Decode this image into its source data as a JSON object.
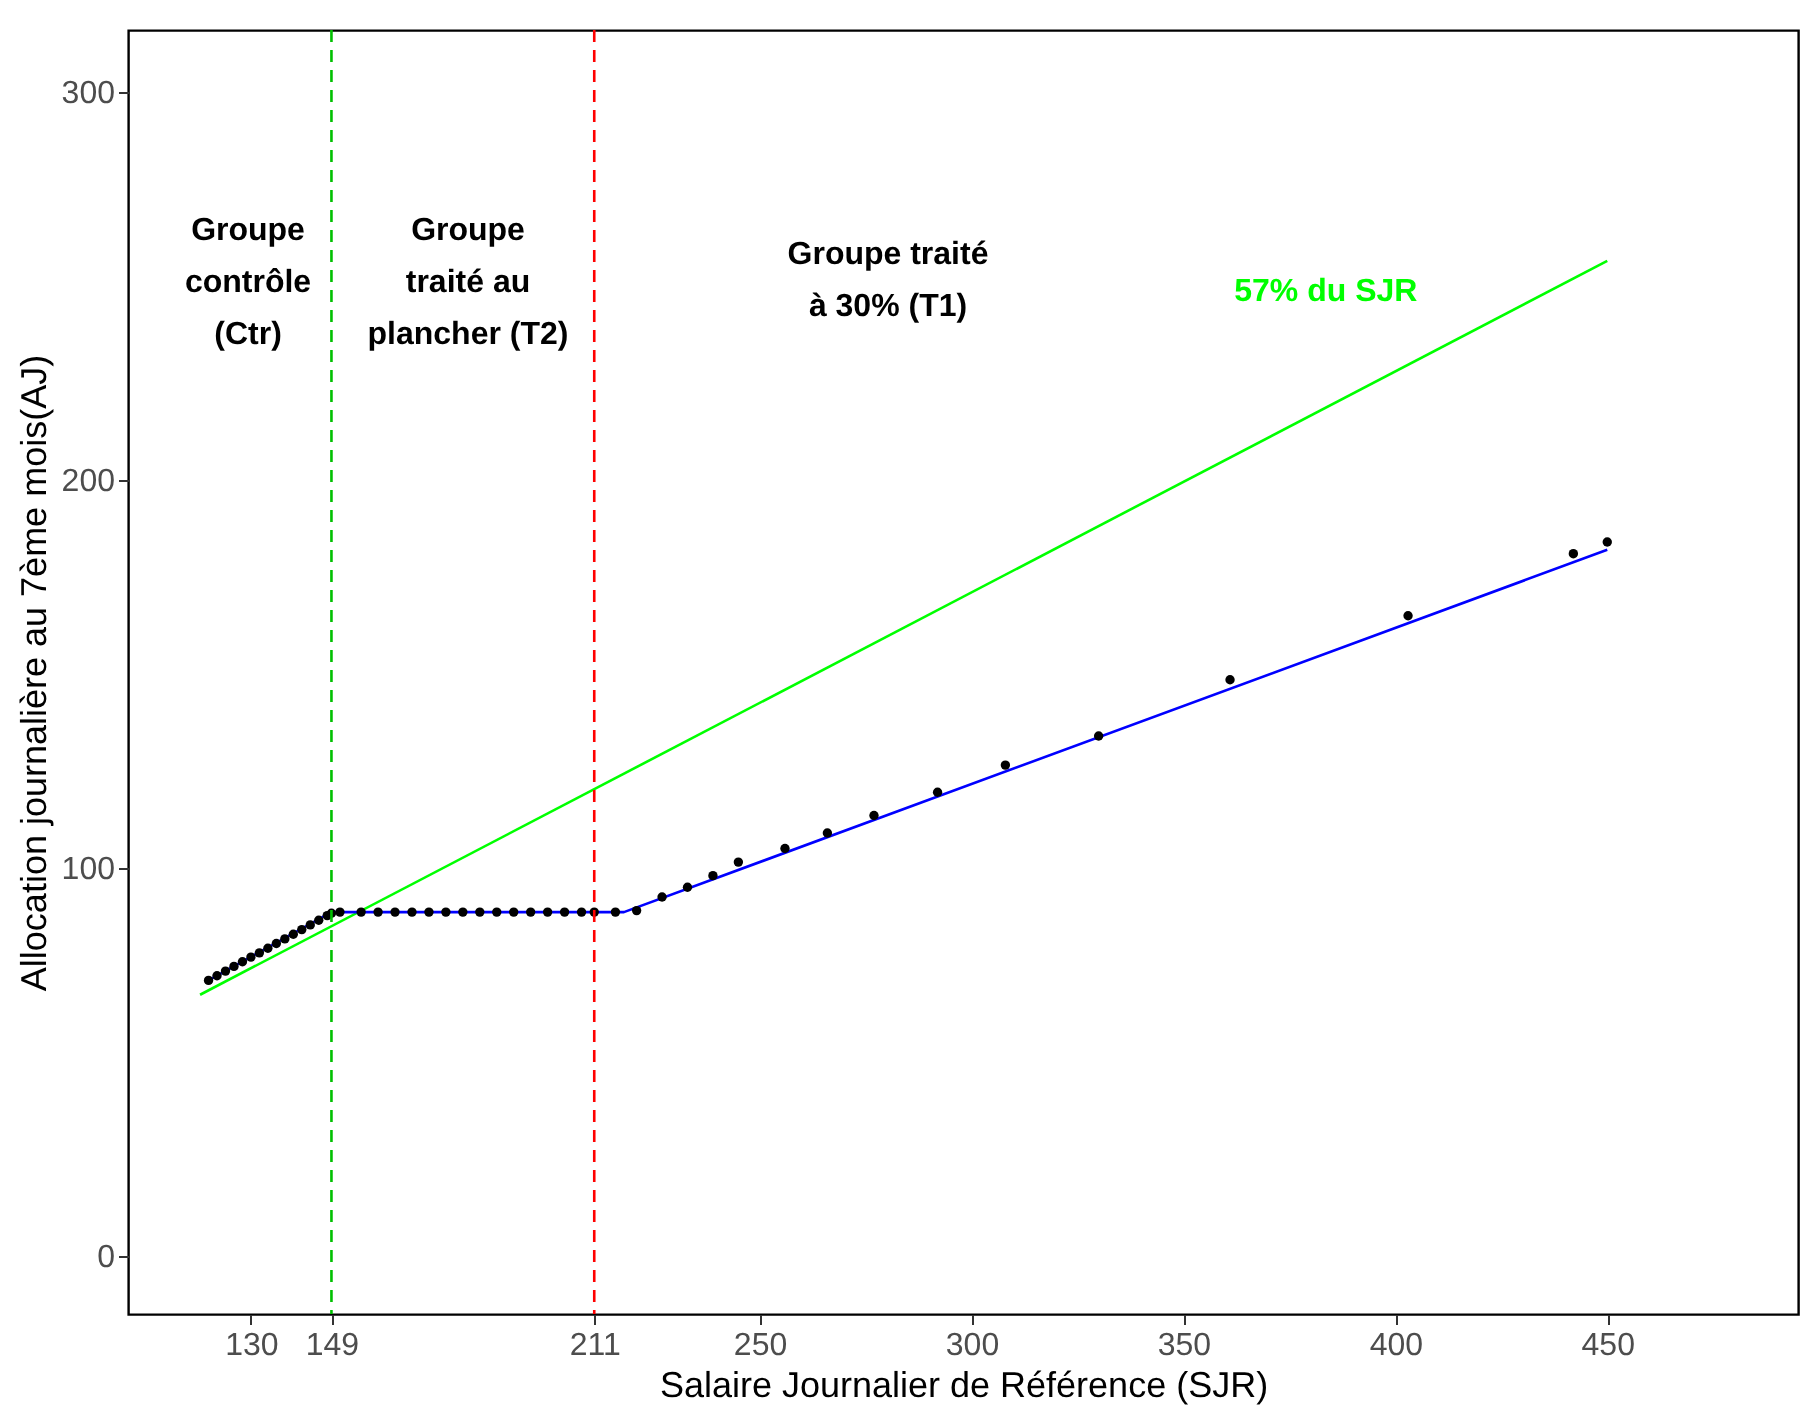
{
  "chart_data": {
    "type": "line",
    "xlabel": "Salaire Journalier de Référence (SJR)",
    "ylabel": "Allocation journalière au 7ème mois(AJ)",
    "xlim": [
      101,
      495
    ],
    "ylim": [
      -15,
      316
    ],
    "xticks": [
      130,
      149,
      211,
      250,
      300,
      350,
      400,
      450
    ],
    "yticks": [
      0,
      100,
      200,
      300
    ],
    "grid": false,
    "series": [
      {
        "name": "57% du SJR",
        "line_style": "solid",
        "marker": "none",
        "color": "#00ff00",
        "x": [
          118,
          450
        ],
        "values": [
          67.3,
          256.5
        ]
      },
      {
        "line_style": "solid",
        "marker": "none",
        "color": "#0000ff",
        "x": [
          120,
          149,
          218,
          450
        ],
        "values": [
          71,
          88.6,
          88.6,
          182
        ]
      },
      {
        "type": "scatter",
        "marker": "circle",
        "color": "#000000",
        "x": [
          120,
          122,
          124,
          126,
          128,
          130,
          132,
          134,
          136,
          138,
          140,
          142,
          144,
          146,
          148,
          149,
          151,
          156,
          160,
          164,
          168,
          172,
          176,
          180,
          184,
          188,
          192,
          196,
          200,
          204,
          208,
          211,
          216,
          221,
          227,
          233,
          239,
          245,
          256,
          266,
          277,
          292,
          308,
          330,
          361,
          403,
          442,
          450
        ],
        "values": [
          71,
          72.2,
          73.4,
          74.6,
          75.8,
          77,
          78.1,
          79.3,
          80.5,
          81.7,
          82.9,
          84.1,
          85.3,
          86.5,
          87.7,
          88.3,
          88.6,
          88.6,
          88.6,
          88.6,
          88.6,
          88.6,
          88.6,
          88.6,
          88.6,
          88.6,
          88.6,
          88.6,
          88.6,
          88.6,
          88.6,
          88.6,
          88.6,
          89,
          92.5,
          95,
          98,
          101.5,
          105,
          109,
          113.5,
          119.5,
          126.5,
          134,
          148.5,
          165,
          181,
          184
        ]
      }
    ],
    "ref_lines": [
      {
        "axis": "x",
        "value": 149,
        "color": "#00c000",
        "line_style": "dashed"
      },
      {
        "axis": "x",
        "value": 211,
        "color": "#ff0000",
        "line_style": "dashed"
      }
    ],
    "annotations": [
      "Groupe\ncontrôle\n(Ctr)",
      "Groupe\ntraité au\nplancher (T2)",
      "Groupe traité\nà 30% (T1)"
    ]
  }
}
